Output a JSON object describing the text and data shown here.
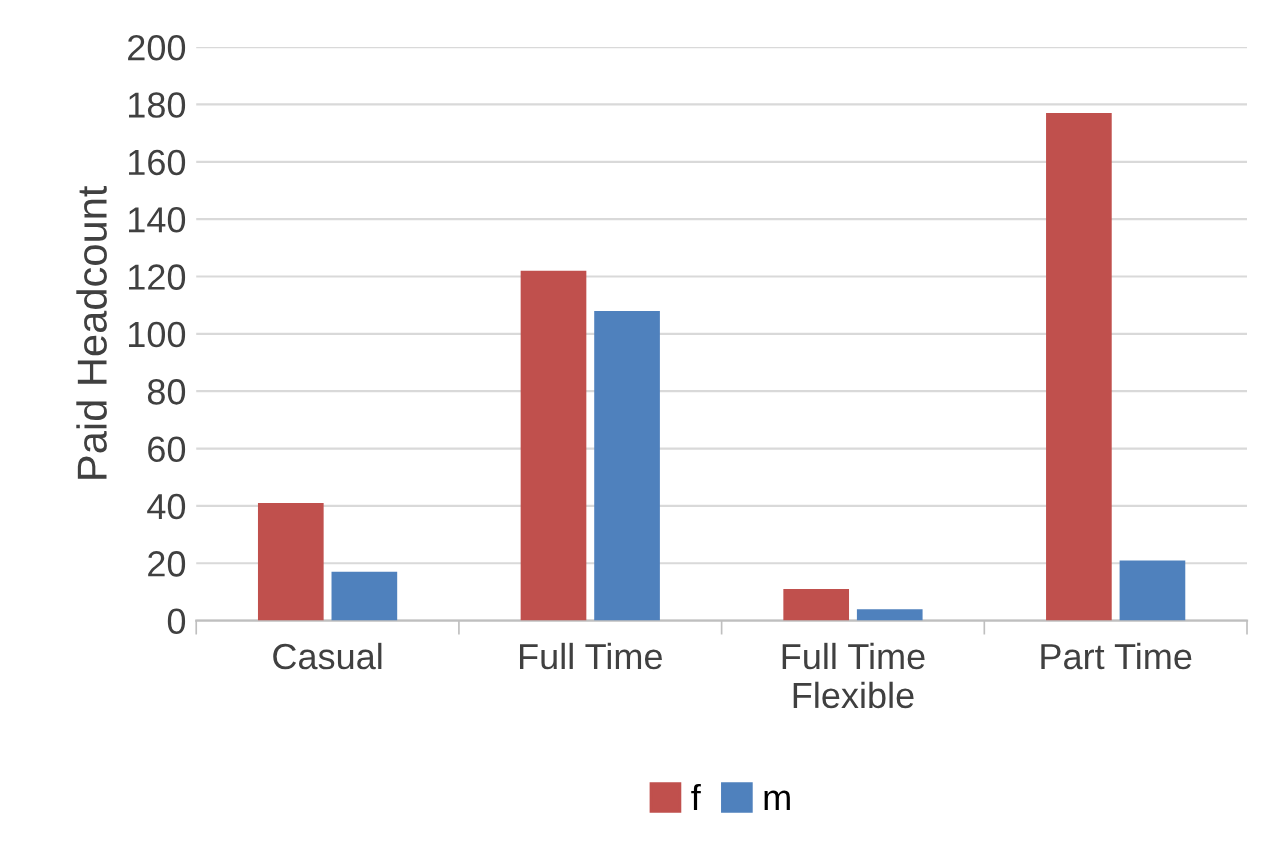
{
  "chart_data": {
    "type": "bar",
    "ylabel": "Paid Headcount",
    "categories": [
      "Casual",
      "Full Time",
      "Full Time\nFlexible",
      "Part Time"
    ],
    "series": [
      {
        "name": "f",
        "color": "#c0504d",
        "values": [
          41,
          122,
          11,
          177
        ]
      },
      {
        "name": "m",
        "color": "#4f81bd",
        "values": [
          17,
          108,
          4,
          21
        ]
      }
    ],
    "ylim": [
      0,
      200
    ],
    "yticks": [
      0,
      20,
      40,
      60,
      80,
      100,
      120,
      140,
      160,
      180,
      200
    ],
    "grid": "y",
    "legend": "bottom"
  }
}
